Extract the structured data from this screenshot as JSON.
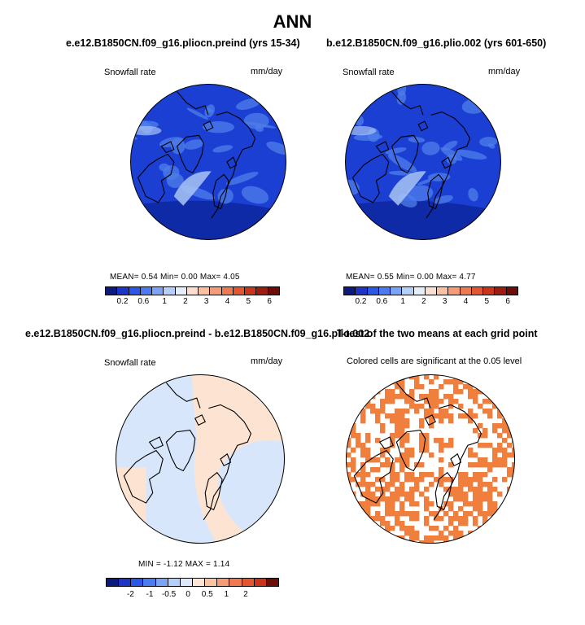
{
  "title": "ANN",
  "panels": [
    {
      "title": "e.e12.B1850CN.f09_g16.pliocn.preind (yrs 15-34)",
      "variable": "Snowfall rate",
      "units": "mm/day",
      "stats": "MEAN=   0.54   Min=   0.00   Max=    4.05"
    },
    {
      "title": "b.e12.B1850CN.f09_g16.plio.002 (yrs 601-650)",
      "variable": "Snowfall rate",
      "units": "mm/day",
      "stats": "MEAN=   0.55   Min=   0.00   Max=    4.77"
    },
    {
      "title": "e.e12.B1850CN.f09_g16.pliocn.preind - b.e12.B1850CN.f09_g16.plio.002",
      "variable": "Snowfall rate",
      "units": "mm/day",
      "stats": "MIN =   -1.12  MAX =    1.14"
    },
    {
      "title": "T-test of the two means at each grid point",
      "variable": "Colored cells are significant at the 0.05 level",
      "units": "",
      "stats": ""
    }
  ],
  "colorbar_abs": {
    "ticks": [
      "0.2",
      "0.6",
      "1",
      "2",
      "3",
      "4",
      "5",
      "6"
    ],
    "colors": [
      "#0d1a7d",
      "#1d34c8",
      "#2a57e6",
      "#4a7cf0",
      "#7aa5f6",
      "#b4cffa",
      "#e6eefc",
      "#fbe0cf",
      "#f9c0a2",
      "#f59c77",
      "#ef7a52",
      "#e4562f",
      "#c9341b",
      "#9e1b0f",
      "#6e0c08"
    ]
  },
  "colorbar_diff": {
    "ticks": [
      "-2",
      "-1",
      "-0.5",
      "0",
      "0.5",
      "1",
      "2"
    ],
    "colors": [
      "#0d1a7d",
      "#1d34c8",
      "#2a57e6",
      "#4a7cf0",
      "#7aa5f6",
      "#b4cffa",
      "#dde8fb",
      "#fde6d6",
      "#f9c3a4",
      "#f59c77",
      "#ef7a52",
      "#e4562f",
      "#c9341b",
      "#6e0c08"
    ]
  },
  "map_colors": {
    "abs_base": "#1a3fd2",
    "abs_dark": "#0f2aa6",
    "abs_light": "#4f7fea",
    "abs_very_light": "#a9c4f4",
    "diff_positive": "#fde4d2",
    "diff_negative": "#d8e6fb",
    "significant": "#f07f3e"
  }
}
